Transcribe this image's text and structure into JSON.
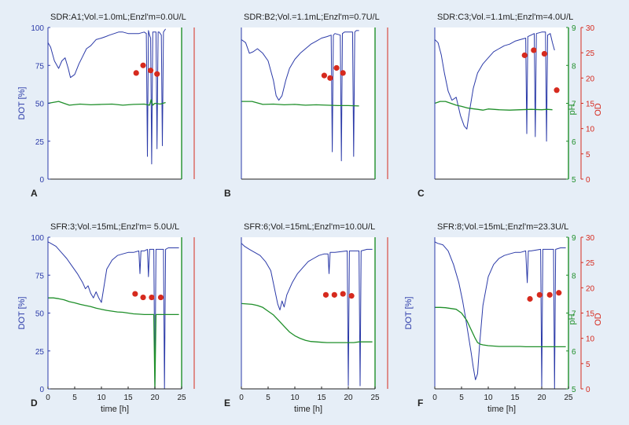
{
  "colors": {
    "background": "#e6eef7",
    "dot": "#2b3aa8",
    "ph": "#1f8f2a",
    "od": "#d62a1e"
  },
  "chart_data": [
    {
      "type": "line",
      "panel_label": "A",
      "title": "SDR:A1;Vol.=1.0mL;Enzl'm=0.0U/L",
      "xlabel": "",
      "ylabel": "DOT [%]",
      "xlim": [
        0,
        25
      ],
      "ylim": [
        0,
        100
      ],
      "ylim_ph": [
        5,
        9
      ],
      "ylim_od": [
        0,
        30
      ],
      "x_ticks": [],
      "y_ticks": [
        0,
        25,
        50,
        75,
        100
      ],
      "ph_ticks": [],
      "od_ticks": [],
      "ph_label": "",
      "od_label": "",
      "series": [
        {
          "variable": "DOT",
          "x": [
            0,
            0.5,
            1.2,
            2,
            2.6,
            3.2,
            3.8,
            4.2,
            5,
            5.8,
            6.5,
            7.2,
            8,
            9,
            10,
            10.8,
            11.5,
            12.4,
            13.2,
            14,
            15,
            16,
            17,
            18,
            18.4,
            18.6,
            18.8,
            19,
            19.2,
            19.4,
            19.6,
            20.2,
            20.4,
            20.6,
            20.8,
            21.2,
            21.4,
            21.6,
            21.8,
            22
          ],
          "y": [
            90,
            87,
            78,
            73,
            78,
            80,
            73,
            67,
            69,
            76,
            81,
            86,
            88,
            92,
            93,
            94,
            95,
            96,
            97,
            97,
            96,
            96,
            96,
            97,
            96,
            15,
            98,
            95,
            93,
            10,
            97,
            97,
            20,
            97,
            97,
            95,
            22,
            97,
            98,
            99
          ]
        },
        {
          "variable": "pH",
          "x": [
            0,
            2,
            4,
            6,
            8,
            10,
            12,
            14,
            16,
            18,
            19,
            19.3,
            19.6,
            20,
            21,
            22
          ],
          "y": [
            7.0,
            7.05,
            6.95,
            6.98,
            6.96,
            6.97,
            6.98,
            6.95,
            6.97,
            6.98,
            6.95,
            7.1,
            6.95,
            7.0,
            6.98,
            7.02
          ]
        },
        {
          "variable": "OD",
          "x": [
            16.5,
            17.8,
            19.2,
            20.4
          ],
          "y": [
            21,
            22.5,
            21.5,
            20.8
          ]
        }
      ]
    },
    {
      "type": "line",
      "panel_label": "B",
      "title": "SDR:B2;Vol.=1.1mL;Enzl'm=0.7U/L",
      "xlabel": "",
      "ylabel": "",
      "xlim": [
        0,
        25
      ],
      "ylim": [
        0,
        100
      ],
      "ylim_ph": [
        5,
        9
      ],
      "ylim_od": [
        0,
        30
      ],
      "x_ticks": [],
      "y_ticks": [],
      "ph_ticks": [],
      "od_ticks": [],
      "ph_label": "",
      "od_label": "",
      "series": [
        {
          "variable": "DOT",
          "x": [
            0,
            0.8,
            1.5,
            2.2,
            3,
            4,
            5,
            6,
            6.5,
            7,
            7.6,
            8.3,
            9,
            10,
            11,
            12,
            13,
            14,
            15,
            16,
            16.8,
            17,
            17.2,
            17.5,
            18.5,
            18.7,
            18.9,
            19.3,
            20,
            20.8,
            21,
            21.2,
            21.5,
            22
          ],
          "y": [
            92,
            90,
            83,
            84,
            86,
            83,
            78,
            65,
            55,
            52,
            55,
            65,
            73,
            79,
            83,
            86,
            89,
            91,
            93,
            94,
            95,
            18,
            95,
            96,
            95,
            12,
            96,
            97,
            97,
            97,
            15,
            97,
            98,
            98
          ]
        },
        {
          "variable": "pH",
          "x": [
            0,
            2,
            4,
            6,
            8,
            10,
            12,
            14,
            16,
            18,
            20,
            22
          ],
          "y": [
            7.05,
            7.05,
            6.97,
            6.98,
            6.96,
            6.97,
            6.95,
            6.96,
            6.95,
            6.94,
            6.94,
            6.93
          ]
        },
        {
          "variable": "OD",
          "x": [
            15.5,
            16.6,
            17.8,
            19.0
          ],
          "y": [
            20.5,
            20.0,
            22.0,
            21.0
          ]
        }
      ]
    },
    {
      "type": "line",
      "panel_label": "C",
      "title": "SDR:C3;Vol.=1.1mL;Enzl'm=4.0U/L",
      "xlabel": "",
      "ylabel": "",
      "xlim": [
        0,
        25
      ],
      "ylim": [
        0,
        100
      ],
      "ylim_ph": [
        5,
        9
      ],
      "ylim_od": [
        0,
        30
      ],
      "x_ticks": [],
      "y_ticks": [],
      "ph_ticks": [
        5,
        6,
        7,
        8,
        9
      ],
      "od_ticks": [
        0,
        5,
        10,
        15,
        20,
        25,
        30
      ],
      "ph_label": "pH",
      "od_label": "OD",
      "series": [
        {
          "variable": "DOT",
          "x": [
            0,
            0.6,
            1.2,
            1.8,
            2.5,
            3.2,
            4,
            4.8,
            5.5,
            6,
            6.5,
            7.2,
            8,
            9,
            10,
            11,
            12,
            13,
            14,
            15,
            16,
            17,
            17.2,
            17.4,
            18,
            18.6,
            18.8,
            19,
            20,
            20.7,
            20.9,
            21.1,
            21.6,
            22,
            22.4
          ],
          "y": [
            92,
            90,
            82,
            70,
            58,
            52,
            54,
            42,
            35,
            33,
            45,
            60,
            70,
            76,
            80,
            84,
            86,
            88,
            89,
            91,
            92,
            93,
            30,
            94,
            95,
            96,
            28,
            96,
            97,
            97,
            25,
            95,
            96,
            90,
            85
          ]
        },
        {
          "variable": "pH",
          "x": [
            0,
            1,
            2,
            3,
            4,
            5,
            6,
            7,
            8,
            9,
            10,
            12,
            14,
            16,
            18,
            20,
            21,
            22
          ],
          "y": [
            7.0,
            7.05,
            7.05,
            7.0,
            6.95,
            6.92,
            6.88,
            6.86,
            6.84,
            6.82,
            6.85,
            6.83,
            6.82,
            6.83,
            6.84,
            6.83,
            6.84,
            6.83
          ]
        },
        {
          "variable": "OD",
          "x": [
            16.8,
            18.5,
            20.5,
            22.8
          ],
          "y": [
            24.5,
            25.5,
            24.8,
            17.6
          ]
        }
      ]
    },
    {
      "type": "line",
      "panel_label": "D",
      "title": "SFR:3;Vol.=15mL;Enzl'm= 5.0U/L",
      "xlabel": "time [h]",
      "ylabel": "DOT [%]",
      "xlim": [
        0,
        25
      ],
      "ylim": [
        0,
        100
      ],
      "ylim_ph": [
        5,
        9
      ],
      "ylim_od": [
        0,
        30
      ],
      "x_ticks": [
        0,
        5,
        10,
        15,
        20,
        25
      ],
      "y_ticks": [
        0,
        25,
        50,
        75,
        100
      ],
      "ph_ticks": [],
      "od_ticks": [],
      "ph_label": "",
      "od_label": "",
      "series": [
        {
          "variable": "DOT",
          "x": [
            0,
            0.5,
            1.5,
            2.5,
            3.5,
            4.5,
            5.5,
            6.5,
            7,
            7.5,
            8,
            8.5,
            9,
            9.5,
            10,
            11,
            12,
            13,
            14,
            15,
            16,
            17,
            17.2,
            17.4,
            18,
            18.6,
            18.8,
            19,
            19.8,
            20,
            20.2,
            20.5,
            21.6,
            21.8,
            22,
            22.5,
            24.5
          ],
          "y": [
            97,
            96,
            94,
            90,
            86,
            81,
            76,
            70,
            66,
            68,
            63,
            60,
            64,
            60,
            57,
            79,
            85,
            88,
            89,
            90,
            90,
            91,
            76,
            91,
            91,
            92,
            74,
            92,
            92,
            0,
            92,
            92,
            92,
            0,
            92,
            93,
            93
          ]
        },
        {
          "variable": "pH",
          "x": [
            0,
            1,
            2,
            3,
            4,
            5,
            6,
            7,
            8,
            9,
            10,
            11,
            12,
            13,
            14,
            15,
            16,
            17,
            18,
            19,
            19.8,
            20,
            20.2,
            21,
            22,
            23,
            24,
            24.5
          ],
          "y": [
            7.4,
            7.4,
            7.38,
            7.35,
            7.3,
            7.27,
            7.23,
            7.2,
            7.17,
            7.13,
            7.1,
            7.07,
            7.05,
            7.03,
            7.02,
            7.0,
            6.98,
            6.97,
            6.96,
            6.96,
            6.96,
            5.0,
            6.96,
            6.96,
            6.96,
            6.96,
            6.96,
            6.96
          ]
        },
        {
          "variable": "OD",
          "x": [
            16.3,
            17.8,
            19.4,
            21.1
          ],
          "y": [
            18.8,
            18.1,
            18.1,
            18.1
          ]
        }
      ]
    },
    {
      "type": "line",
      "panel_label": "E",
      "title": "SFR:6;Vol.=15mL;Enzl'm=10.0U/L",
      "xlabel": "time [h]",
      "ylabel": "",
      "xlim": [
        0,
        25
      ],
      "ylim": [
        0,
        100
      ],
      "ylim_ph": [
        5,
        9
      ],
      "ylim_od": [
        0,
        30
      ],
      "x_ticks": [
        0,
        5,
        10,
        15,
        20,
        25
      ],
      "y_ticks": [],
      "ph_ticks": [],
      "od_ticks": [],
      "ph_label": "",
      "od_label": "",
      "series": [
        {
          "variable": "DOT",
          "x": [
            0,
            0.6,
            1.5,
            2.5,
            3.5,
            4.5,
            5.5,
            6.2,
            6.8,
            7.2,
            7.6,
            8,
            8.5,
            9.5,
            10.5,
            11.5,
            12.5,
            13.5,
            14.5,
            15.5,
            16.2,
            16.4,
            16.6,
            17.5,
            19.8,
            20,
            20.2,
            21,
            22,
            22.2,
            22.4,
            23.5,
            24.5
          ],
          "y": [
            96,
            94,
            92,
            90,
            88,
            84,
            78,
            66,
            56,
            52,
            58,
            54,
            62,
            70,
            76,
            80,
            84,
            86,
            88,
            89,
            89,
            76,
            90,
            90,
            91,
            2,
            91,
            91,
            91,
            2,
            91,
            92,
            92
          ]
        },
        {
          "variable": "pH",
          "x": [
            0,
            1,
            2,
            3,
            4,
            5,
            6,
            7,
            8,
            9,
            10,
            11,
            12,
            13,
            14,
            15,
            16,
            17,
            18,
            19,
            20,
            21,
            22,
            23,
            24,
            24.5
          ],
          "y": [
            7.25,
            7.24,
            7.23,
            7.2,
            7.15,
            7.05,
            6.95,
            6.8,
            6.65,
            6.5,
            6.4,
            6.33,
            6.28,
            6.25,
            6.24,
            6.23,
            6.22,
            6.22,
            6.22,
            6.22,
            6.22,
            6.22,
            6.24,
            6.24,
            6.24,
            6.24
          ]
        },
        {
          "variable": "OD",
          "x": [
            15.8,
            17.4,
            19.0,
            20.6
          ],
          "y": [
            18.6,
            18.6,
            18.8,
            18.4
          ]
        }
      ]
    },
    {
      "type": "line",
      "panel_label": "F",
      "title": "SFR:8;Vol.=15mL;Enzl'm=23.3U/L",
      "xlabel": "time [h]",
      "ylabel": "DOT [%]",
      "xlim": [
        0,
        25
      ],
      "ylim": [
        0,
        100
      ],
      "ylim_ph": [
        5,
        9
      ],
      "ylim_od": [
        0,
        30
      ],
      "x_ticks": [
        0,
        5,
        10,
        15,
        20,
        25
      ],
      "y_ticks": [],
      "ph_ticks": [
        5,
        6,
        7,
        8,
        9
      ],
      "od_ticks": [
        0,
        5,
        10,
        15,
        20,
        25,
        30
      ],
      "ph_label": "pH",
      "od_label": "OD",
      "series": [
        {
          "variable": "DOT",
          "x": [
            0,
            0.5,
            1.5,
            2.5,
            3.5,
            4.5,
            5.2,
            5.8,
            6.3,
            6.8,
            7.2,
            7.6,
            8,
            8.4,
            9,
            10,
            11,
            12,
            13,
            14,
            15,
            16,
            17,
            17.3,
            17.5,
            18,
            19.8,
            20,
            20.2,
            21,
            22.2,
            22.4,
            22.6,
            23.5,
            24.5
          ],
          "y": [
            97,
            96,
            95,
            91,
            82,
            70,
            58,
            46,
            35,
            24,
            14,
            6,
            10,
            30,
            55,
            74,
            82,
            86,
            88,
            89,
            90,
            90,
            91,
            70,
            91,
            91,
            92,
            0,
            92,
            92,
            92,
            0,
            92,
            93,
            93
          ]
        },
        {
          "variable": "pH",
          "x": [
            0,
            1,
            2,
            3,
            4,
            5,
            6,
            7,
            7.5,
            8,
            8.5,
            9,
            9.5,
            10,
            11,
            12,
            13,
            14,
            15,
            16,
            17,
            18,
            19,
            20,
            21,
            22,
            23,
            24,
            24.5
          ],
          "y": [
            7.15,
            7.15,
            7.14,
            7.12,
            7.1,
            7.0,
            6.8,
            6.5,
            6.35,
            6.22,
            6.18,
            6.16,
            6.15,
            6.14,
            6.13,
            6.12,
            6.12,
            6.12,
            6.12,
            6.12,
            6.11,
            6.11,
            6.11,
            6.11,
            6.11,
            6.11,
            6.11,
            6.11,
            6.11
          ]
        },
        {
          "variable": "OD",
          "x": [
            17.8,
            19.6,
            21.5,
            23.2
          ],
          "y": [
            17.8,
            18.6,
            18.6,
            19.0
          ]
        }
      ]
    }
  ]
}
